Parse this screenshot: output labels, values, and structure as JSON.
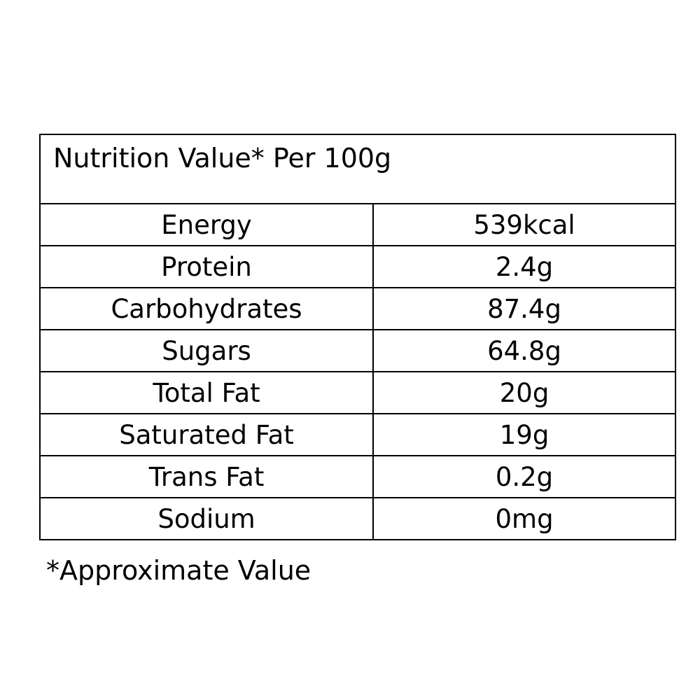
{
  "table": {
    "title": "Nutrition Value* Per 100g",
    "rows": [
      {
        "nutrient": "Energy",
        "amount": "539kcal"
      },
      {
        "nutrient": "Protein",
        "amount": "2.4g"
      },
      {
        "nutrient": "Carbohydrates",
        "amount": "87.4g"
      },
      {
        "nutrient": "Sugars",
        "amount": "64.8g"
      },
      {
        "nutrient": "Total Fat",
        "amount": "20g"
      },
      {
        "nutrient": "Saturated Fat",
        "amount": "19g"
      },
      {
        "nutrient": "Trans Fat",
        "amount": "0.2g"
      },
      {
        "nutrient": "Sodium",
        "amount": "0mg"
      }
    ]
  },
  "footnote": "*Approximate Value"
}
